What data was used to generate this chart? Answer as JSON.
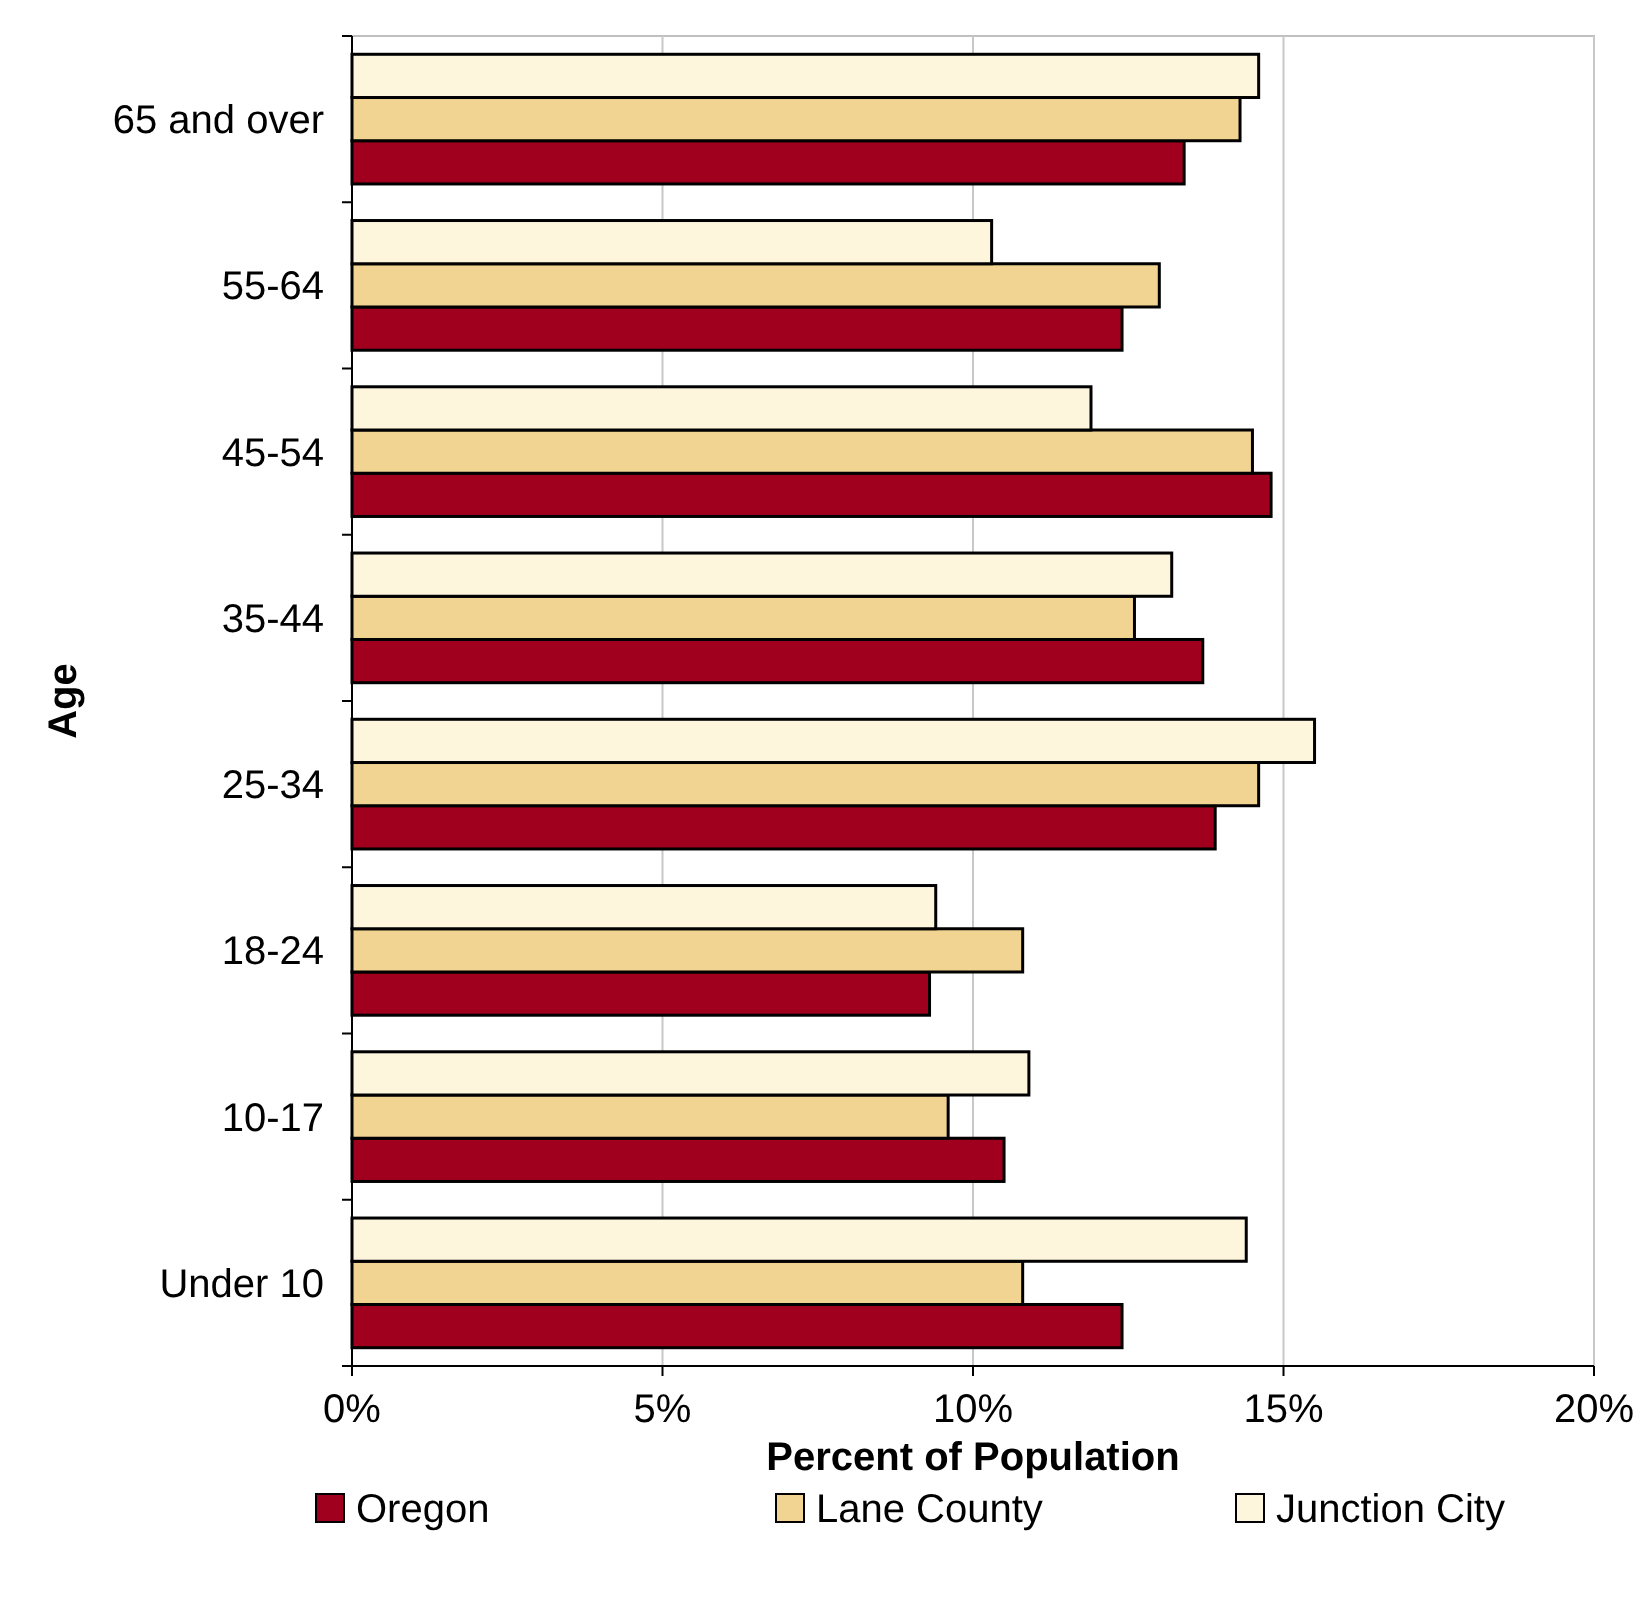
{
  "chart_data": {
    "type": "bar",
    "orientation": "horizontal",
    "xlabel": "Percent of Population",
    "ylabel": "Age",
    "categories": [
      "65 and over",
      "55-64",
      "45-54",
      "35-44",
      "25-34",
      "18-24",
      "10-17",
      "Under 10"
    ],
    "series": [
      {
        "name": "Oregon",
        "color": "#a0001e",
        "values": [
          13.4,
          12.4,
          14.8,
          13.7,
          13.9,
          9.3,
          10.5,
          12.4
        ]
      },
      {
        "name": "Lane County",
        "color": "#f2d492",
        "values": [
          14.3,
          13.0,
          14.5,
          12.6,
          14.6,
          10.8,
          9.6,
          10.8
        ]
      },
      {
        "name": "Junction City",
        "color": "#fdf5dc",
        "values": [
          14.6,
          10.3,
          11.9,
          13.2,
          15.5,
          9.4,
          10.9,
          14.4
        ]
      }
    ],
    "xlim": [
      0,
      20
    ],
    "xticks": [
      {
        "value": 0,
        "label": "0%"
      },
      {
        "value": 5,
        "label": "5%"
      },
      {
        "value": 10,
        "label": "10%"
      },
      {
        "value": 15,
        "label": "15%"
      },
      {
        "value": 20,
        "label": "20%"
      }
    ],
    "grid": "x",
    "legend": "bottom"
  }
}
